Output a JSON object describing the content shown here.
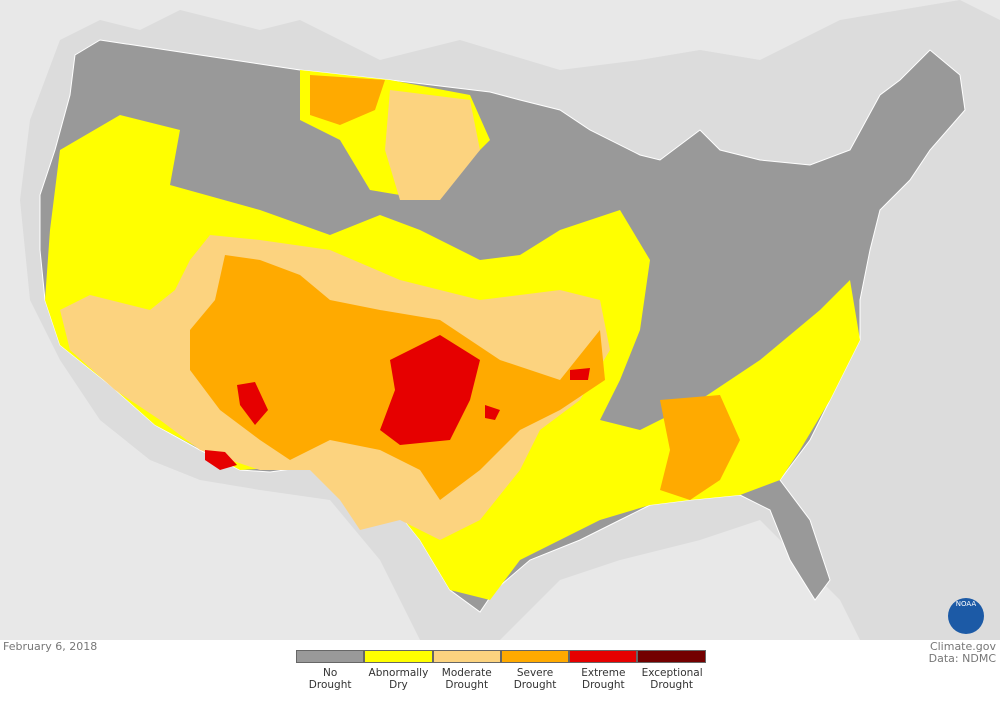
{
  "date": "February 6, 2018",
  "legend": [
    {
      "label": "No Drought",
      "color": "#999999"
    },
    {
      "label": "Abnormally Dry",
      "color": "#ffff00"
    },
    {
      "label": "Moderate Drought",
      "color": "#fcd37f"
    },
    {
      "label": "Severe Drought",
      "color": "#ffaa00"
    },
    {
      "label": "Extreme Drought",
      "color": "#e60000"
    },
    {
      "label": "Exceptional Drought",
      "color": "#730000"
    }
  ],
  "credits": {
    "source": "Climate.gov",
    "data": "Data: NDMC"
  },
  "logo": {
    "label": "NOAA"
  }
}
